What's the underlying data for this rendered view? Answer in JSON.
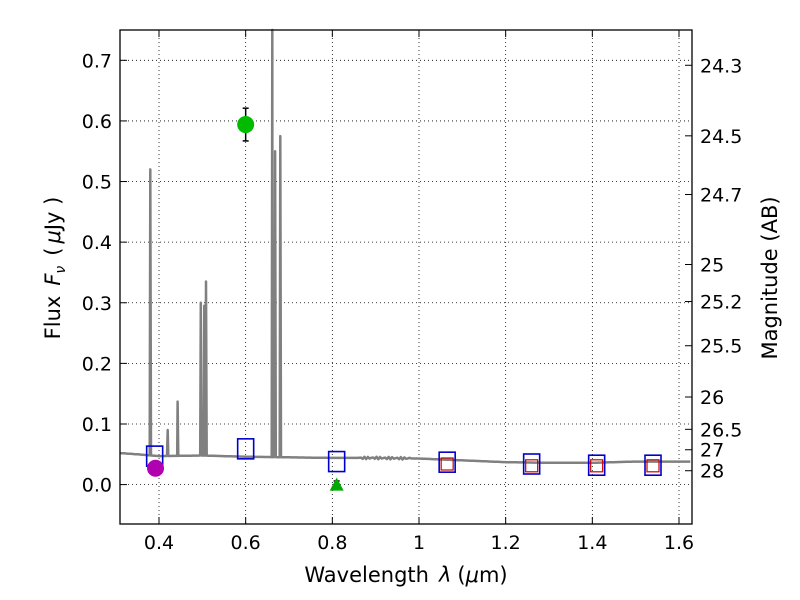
{
  "chart_data": {
    "type": "scatter",
    "xlabel_main": "Wavelength",
    "xlabel_sym": "λ",
    "xlabel_unit_open": "(",
    "xlabel_unit_mu": "μ",
    "xlabel_unit_rest": "m)",
    "ylabel_main": "Flux",
    "ylabel_sym": "F",
    "ylabel_sub": "ν",
    "ylabel_unit_open": "(",
    "ylabel_unit_mu": "μ",
    "ylabel_unit_rest": "Jy )",
    "y2label": "Magnitude (AB)",
    "xlim": [
      0.31,
      1.63
    ],
    "ylim": [
      -0.065,
      0.75
    ],
    "grid": true,
    "x_ticks": [
      0.4,
      0.6,
      0.8,
      1.0,
      1.2,
      1.4,
      1.6
    ],
    "x_tick_labels": [
      "0.4",
      "0.6",
      "0.8",
      "1",
      "1.2",
      "1.4",
      "1.6"
    ],
    "y_ticks": [
      0.0,
      0.1,
      0.2,
      0.3,
      0.4,
      0.5,
      0.6,
      0.7
    ],
    "y_tick_labels": [
      "0.0",
      "0.1",
      "0.2",
      "0.3",
      "0.4",
      "0.5",
      "0.6",
      "0.7"
    ],
    "mag_ticks": [
      {
        "flux": 0.6918,
        "label": "24.3"
      },
      {
        "flux": 0.5754,
        "label": "24.5"
      },
      {
        "flux": 0.4786,
        "label": "24.7"
      },
      {
        "flux": 0.3631,
        "label": "25"
      },
      {
        "flux": 0.302,
        "label": "25.2"
      },
      {
        "flux": 0.2291,
        "label": "25.5"
      },
      {
        "flux": 0.1445,
        "label": "26"
      },
      {
        "flux": 0.0912,
        "label": "26.5"
      },
      {
        "flux": 0.0575,
        "label": "27"
      },
      {
        "flux": 0.0229,
        "label": "28"
      }
    ],
    "series": [
      {
        "name": "model spectrum",
        "kind": "line",
        "color": "#808080",
        "continuum": [
          [
            0.31,
            0.052
          ],
          [
            0.35,
            0.05
          ],
          [
            0.4,
            0.047
          ],
          [
            0.5,
            0.048
          ],
          [
            0.6,
            0.046
          ],
          [
            0.7,
            0.045
          ],
          [
            0.8,
            0.044
          ],
          [
            0.9,
            0.044
          ],
          [
            1.0,
            0.043
          ],
          [
            1.1,
            0.04
          ],
          [
            1.2,
            0.037
          ],
          [
            1.3,
            0.036
          ],
          [
            1.4,
            0.036
          ],
          [
            1.5,
            0.038
          ],
          [
            1.63,
            0.038
          ]
        ],
        "lines": [
          [
            0.38,
            0.52
          ],
          [
            0.42,
            0.09
          ],
          [
            0.443,
            0.137
          ],
          [
            0.4965,
            0.3
          ],
          [
            0.5045,
            0.295
          ],
          [
            0.5085,
            0.335
          ],
          [
            0.6615,
            0.75
          ],
          [
            0.668,
            0.55
          ],
          [
            0.68,
            0.575
          ]
        ]
      },
      {
        "name": "model photometry",
        "kind": "open-square",
        "color": "#0000cc",
        "points": [
          [
            0.39,
            0.047
          ],
          [
            0.6,
            0.059
          ],
          [
            0.81,
            0.038
          ],
          [
            1.065,
            0.037
          ],
          [
            1.26,
            0.034
          ],
          [
            1.41,
            0.032
          ],
          [
            1.54,
            0.032
          ]
        ]
      },
      {
        "name": "observed upper limits",
        "kind": "open-square-small",
        "color": "#cc0000",
        "points": [
          [
            1.065,
            0.034
          ],
          [
            1.26,
            0.031
          ],
          [
            1.41,
            0.031
          ],
          [
            1.54,
            0.031
          ]
        ]
      },
      {
        "name": "observed detection",
        "kind": "circle",
        "color": "#00bb00",
        "points": [
          [
            0.6,
            0.594
          ]
        ],
        "errors": [
          0.027
        ]
      },
      {
        "name": "observed blue band",
        "kind": "circle",
        "color": "#b000b0",
        "points": [
          [
            0.392,
            0.027
          ]
        ],
        "errors": [
          0.009
        ]
      },
      {
        "name": "observed non-detection",
        "kind": "triangle",
        "color": "#00aa00",
        "points": [
          [
            0.81,
            0.0
          ]
        ],
        "errors": [
          0.006
        ]
      }
    ]
  }
}
